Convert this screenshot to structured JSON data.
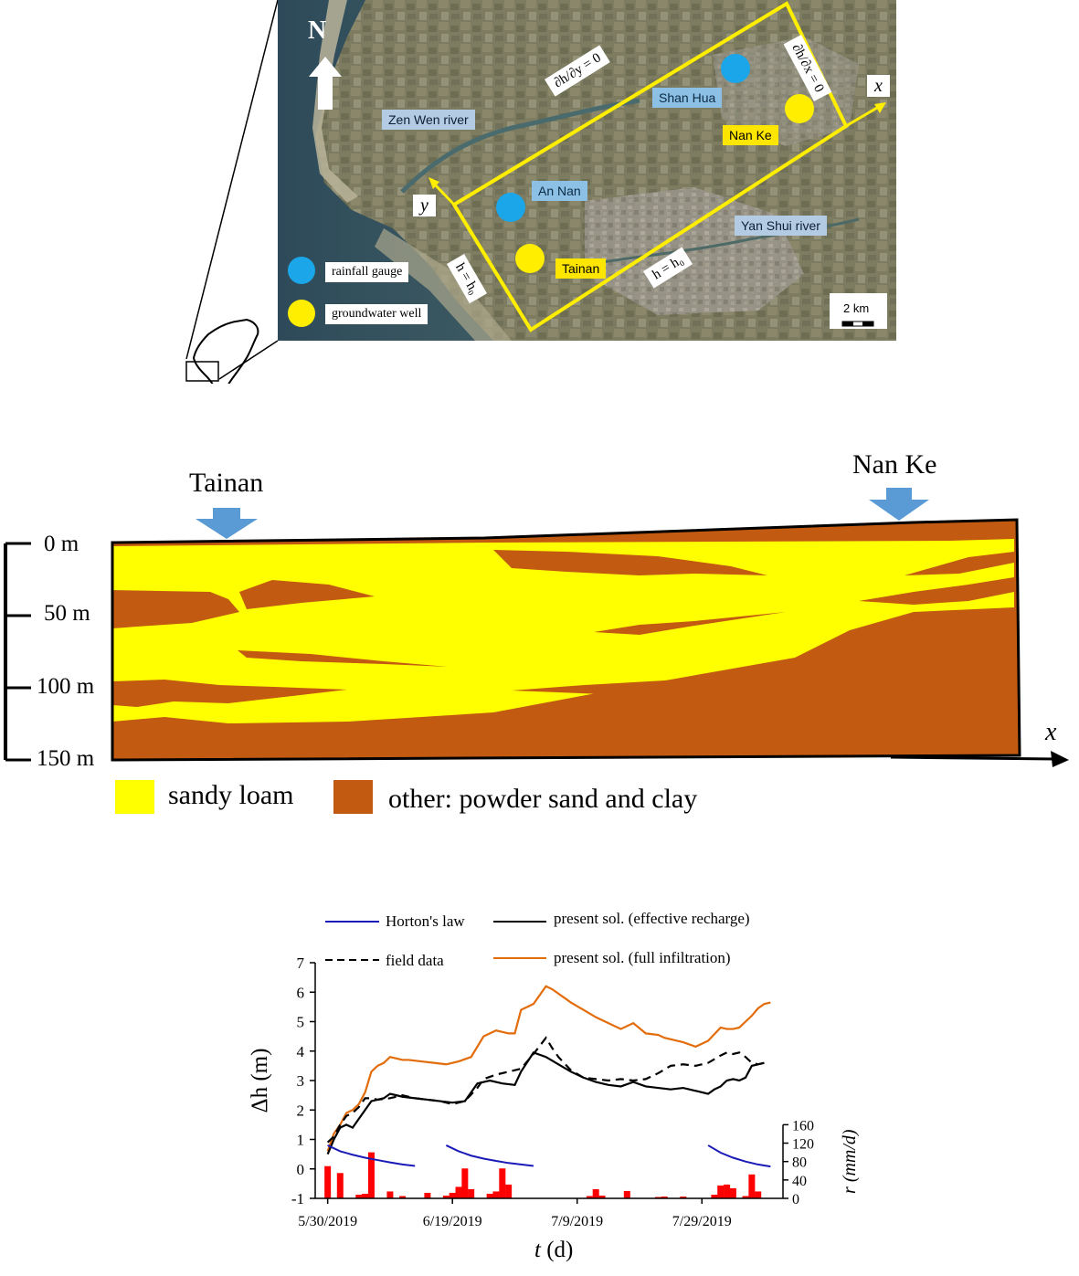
{
  "map": {
    "north": "N",
    "rainfall_gauges": [
      "Shan Hua",
      "An Nan"
    ],
    "groundwater_wells": [
      "Nan Ke",
      "Tainan"
    ],
    "rivers": [
      "Zen Wen river",
      "Yan Shui river"
    ],
    "legend": {
      "gauge": "rainfall gauge",
      "well": "groundwater well"
    },
    "scale": "2 km",
    "axis_x": "x",
    "axis_y": "y",
    "bc_top": "∂h/∂y = 0",
    "bc_right": "∂h/∂x = 0",
    "bc_left": "h = h₀",
    "bc_bottom": "h = h₀",
    "colors": {
      "gauge": "#1aa6e8",
      "well": "#ffee00",
      "domain": "#ffee00"
    }
  },
  "section": {
    "left_well": "Tainan",
    "right_well": "Nan Ke",
    "depth_ticks": [
      "0 m",
      "50 m",
      "100 m",
      "150 m"
    ],
    "axis_x": "x",
    "legend": [
      "sandy loam",
      "other: powder sand and clay"
    ],
    "colors": {
      "sandy_loam": "#ffff00",
      "other": "#c25a12",
      "arrow": "#5b9bd5"
    }
  },
  "chart_data": {
    "type": "line",
    "xlabel_italic": "t",
    "xlabel_unit": " (d)",
    "ylabel": "Δh (m)",
    "y2label": "r (mm/d)",
    "ylim": [
      -1,
      7
    ],
    "y2lim": [
      0,
      160
    ],
    "yticks": [
      "7",
      "6",
      "5",
      "4",
      "3",
      "2",
      "1",
      "0",
      "-1"
    ],
    "y2ticks": [
      "160",
      "120",
      "80",
      "40",
      "0"
    ],
    "xticks": [
      "5/30/2019",
      "6/19/2019",
      "7/9/2019",
      "7/29/2019"
    ],
    "xtick_days": [
      0,
      20,
      40,
      60
    ],
    "xlim": [
      -2,
      73
    ],
    "legend": [
      "Horton's law",
      "present sol. (effective recharge)",
      "field data",
      "present sol. (full infiltration)"
    ],
    "series": [
      {
        "name": "present sol. (full infiltration)",
        "color": "#e36c0a",
        "x": [
          0,
          1,
          2,
          3,
          4,
          5,
          6,
          7,
          8,
          9,
          10,
          11,
          12,
          13,
          15,
          17,
          19,
          20,
          21,
          23,
          25,
          27,
          29,
          30,
          31,
          33,
          35,
          36,
          37,
          38,
          39,
          41,
          43,
          45,
          47,
          49,
          51,
          53,
          54,
          55,
          57,
          59,
          61,
          63,
          64,
          65,
          66,
          67,
          68,
          69,
          70,
          71
        ],
        "y": [
          0.6,
          1.2,
          1.5,
          1.9,
          2.0,
          2.2,
          2.6,
          3.3,
          3.5,
          3.6,
          3.8,
          3.75,
          3.7,
          3.7,
          3.65,
          3.6,
          3.55,
          3.6,
          3.65,
          3.8,
          4.5,
          4.7,
          4.6,
          4.6,
          5.4,
          5.6,
          6.2,
          6.1,
          5.95,
          5.8,
          5.65,
          5.4,
          5.15,
          4.95,
          4.75,
          4.95,
          4.6,
          4.55,
          4.45,
          4.4,
          4.3,
          4.15,
          4.35,
          4.8,
          4.75,
          4.75,
          4.8,
          5.0,
          5.2,
          5.45,
          5.6,
          5.65
        ]
      },
      {
        "name": "present sol. (effective recharge)",
        "color": "#000000",
        "x": [
          0,
          1,
          2,
          3,
          4,
          5,
          6,
          7,
          8,
          9,
          10,
          11,
          12,
          14,
          16,
          18,
          20,
          22,
          24,
          26,
          28,
          30,
          31,
          33,
          35,
          37,
          39,
          41,
          43,
          45,
          47,
          49,
          51,
          53,
          55,
          57,
          59,
          61,
          62,
          63,
          64,
          65,
          66,
          67,
          68,
          69,
          70
        ],
        "y": [
          0.5,
          1.0,
          1.4,
          1.5,
          1.4,
          1.7,
          2.0,
          2.3,
          2.35,
          2.4,
          2.55,
          2.5,
          2.45,
          2.4,
          2.35,
          2.3,
          2.25,
          2.3,
          2.9,
          3.0,
          2.9,
          2.85,
          3.3,
          3.95,
          3.8,
          3.55,
          3.3,
          3.1,
          2.95,
          2.85,
          2.8,
          2.95,
          2.8,
          2.75,
          2.7,
          2.75,
          2.65,
          2.55,
          2.7,
          2.8,
          3.0,
          3.05,
          3.0,
          3.1,
          3.5,
          3.55,
          3.6
        ]
      },
      {
        "name": "field data",
        "color": "#000000",
        "dashed": true,
        "x": [
          0,
          1,
          2,
          3,
          4,
          5,
          6,
          7,
          8,
          10,
          12,
          14,
          16,
          18,
          20,
          22,
          24,
          25,
          27,
          29,
          31,
          33,
          35,
          36,
          37,
          39,
          41,
          43,
          45,
          47,
          49,
          51,
          53,
          55,
          57,
          59,
          61,
          63,
          64,
          65,
          66,
          67,
          68,
          69,
          70
        ],
        "y": [
          0.9,
          1.1,
          1.5,
          1.8,
          1.9,
          2.1,
          2.4,
          2.4,
          2.35,
          2.4,
          2.5,
          2.4,
          2.35,
          2.3,
          2.2,
          2.3,
          2.75,
          3.05,
          3.2,
          3.3,
          3.4,
          3.9,
          4.45,
          4.1,
          3.8,
          3.35,
          3.1,
          3.05,
          3.0,
          3.05,
          3.0,
          3.05,
          3.25,
          3.5,
          3.55,
          3.5,
          3.6,
          3.85,
          3.95,
          3.9,
          3.95,
          3.8,
          3.6,
          3.55,
          3.6
        ]
      },
      {
        "name": "Horton's law",
        "color": "#1a1ab8",
        "segments": [
          {
            "x": [
              0,
              2,
              4,
              6,
              8,
              10,
              12,
              14
            ],
            "y": [
              0.8,
              0.6,
              0.48,
              0.38,
              0.3,
              0.22,
              0.15,
              0.1
            ]
          },
          {
            "x": [
              19,
              21,
              23,
              25,
              27,
              29,
              31,
              33
            ],
            "y": [
              0.8,
              0.6,
              0.45,
              0.35,
              0.27,
              0.2,
              0.15,
              0.1
            ]
          },
          {
            "x": [
              61,
              63,
              65,
              67,
              69,
              71
            ],
            "y": [
              0.8,
              0.55,
              0.38,
              0.25,
              0.15,
              0.08
            ]
          }
        ]
      }
    ],
    "rainfall": {
      "name": "r (mm/d)",
      "color": "#ff0000",
      "x": [
        0,
        2,
        5,
        6,
        7,
        10,
        12,
        16,
        19,
        20,
        21,
        22,
        23,
        26,
        27,
        28,
        29,
        42,
        43,
        44,
        48,
        53,
        54,
        57,
        62,
        63,
        64,
        65,
        67,
        68,
        69
      ],
      "values": [
        70,
        55,
        8,
        10,
        100,
        15,
        5,
        12,
        6,
        12,
        25,
        65,
        20,
        10,
        15,
        65,
        30,
        5,
        20,
        6,
        16,
        3,
        4,
        4,
        8,
        28,
        30,
        22,
        5,
        52,
        15
      ]
    }
  }
}
